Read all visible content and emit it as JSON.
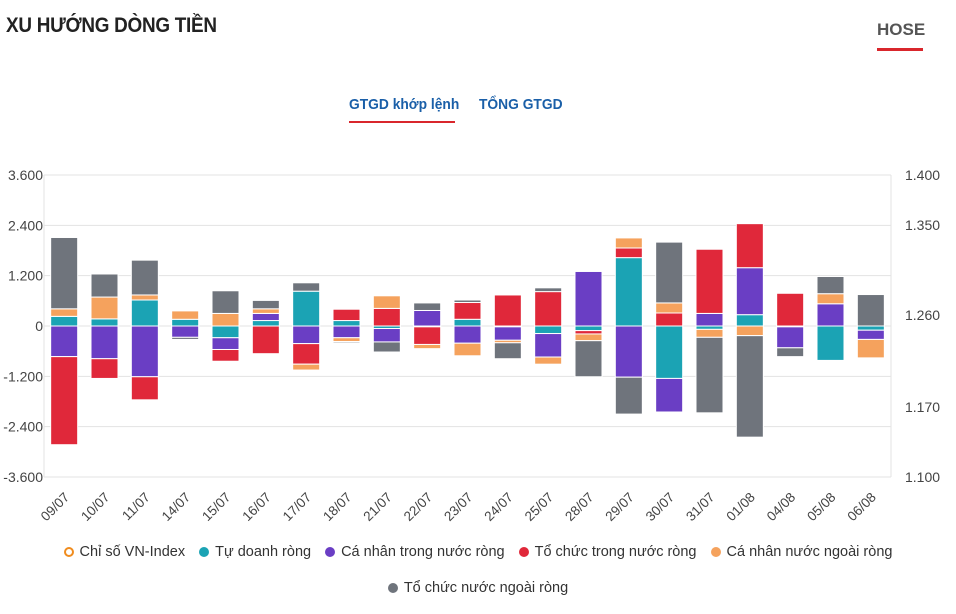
{
  "header": {
    "title": "XU HƯỚNG DÒNG TIỀN",
    "exchange": "HOSE"
  },
  "tabs": [
    {
      "label": "GTGD khớp lệnh",
      "active": true
    },
    {
      "label": "TỔNG GTGD",
      "active": false
    }
  ],
  "chart_data": {
    "type": "bar",
    "stacked": true,
    "title": "",
    "categories": [
      "09/07",
      "10/07",
      "11/07",
      "14/07",
      "15/07",
      "16/07",
      "17/07",
      "18/07",
      "21/07",
      "22/07",
      "23/07",
      "24/07",
      "25/07",
      "28/07",
      "29/07",
      "30/07",
      "31/07",
      "01/08",
      "04/08",
      "05/08",
      "06/08"
    ],
    "y_left": {
      "ticks": [
        "3.600",
        "2.400",
        "1.200",
        "0",
        "-1.200",
        "-2.400",
        "-3.600"
      ],
      "range": [
        -3600,
        3600
      ]
    },
    "y_right": {
      "ticks": [
        "1.400",
        "1.350",
        "1.260",
        "1.170",
        "1.100"
      ]
    },
    "series": [
      {
        "name": "Tự doanh ròng",
        "color": "#1ba3b4",
        "values": [
          230,
          170,
          620,
          160,
          -280,
          130,
          830,
          130,
          -60,
          -20,
          160,
          -20,
          -180,
          -110,
          1630,
          -1250,
          -80,
          270,
          -20,
          -820,
          -100
        ]
      },
      {
        "name": "Cá nhân trong nước ròng",
        "color": "#6a3ec4",
        "values": [
          -730,
          -780,
          -1210,
          -270,
          -280,
          170,
          -420,
          -280,
          -320,
          370,
          -410,
          -320,
          -560,
          1300,
          -1220,
          -800,
          300,
          1120,
          -500,
          530,
          -220
        ]
      },
      {
        "name": "Tổ chức trong nước ròng",
        "color": "#e0283a",
        "values": [
          -2100,
          -470,
          -550,
          0,
          -280,
          -660,
          -490,
          270,
          420,
          -420,
          400,
          740,
          820,
          -80,
          230,
          310,
          1530,
          1050,
          780,
          0,
          0
        ]
      },
      {
        "name": "Cá nhân nước ngoài ròng",
        "color": "#f5a25d",
        "values": [
          180,
          520,
          120,
          200,
          300,
          110,
          -140,
          -90,
          300,
          -100,
          -300,
          -60,
          -170,
          -160,
          240,
          240,
          -190,
          -230,
          0,
          240,
          -440
        ]
      },
      {
        "name": "Tổ chức nước ngoài ròng",
        "color": "#6f747c",
        "values": [
          1700,
          550,
          830,
          -50,
          540,
          200,
          200,
          -30,
          -240,
          180,
          60,
          -380,
          90,
          -860,
          -880,
          1450,
          -1800,
          -2420,
          -210,
          410,
          750
        ]
      }
    ]
  },
  "legend": {
    "row1": [
      "Chỉ số VN-Index",
      "Tự doanh ròng",
      "Cá nhân trong nước ròng",
      "Tổ chức trong nước ròng",
      "Cá nhân nước ngoài ròng"
    ],
    "row2": [
      "Tổ chức nước ngoài ròng"
    ]
  },
  "colors": {
    "index": "#f08c1e",
    "accent": "#d9262c",
    "tab": "#1a5fa8"
  }
}
